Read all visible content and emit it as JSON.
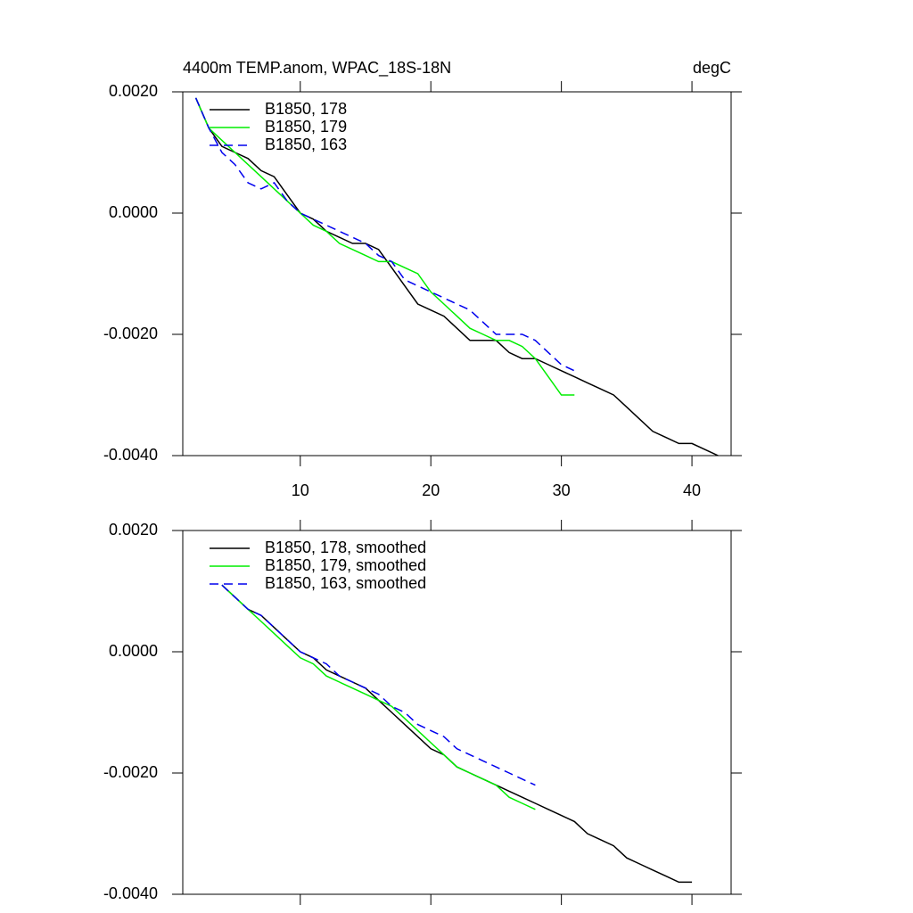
{
  "chart_data": [
    {
      "type": "line",
      "title": "4400m TEMP.anom, WPAC_18S-18N",
      "units": "degC",
      "xlim": [
        1,
        43
      ],
      "xticks": [
        10,
        20,
        30,
        40
      ],
      "show_xtick_labels": true,
      "ylim": [
        -0.004,
        0.002
      ],
      "yticks": [
        {
          "value": -0.004,
          "label": "-0.0040"
        },
        {
          "value": -0.002,
          "label": "-0.0020"
        },
        {
          "value": 0,
          "label": "0.0000"
        },
        {
          "value": 0.002,
          "label": "0.0020"
        }
      ],
      "legend": "upper left",
      "series": [
        {
          "name": "B1850, 178",
          "color": "#000000",
          "dash": false,
          "x": [
            2,
            3,
            4,
            5,
            6,
            7,
            8,
            9,
            10,
            11,
            12,
            13,
            14,
            15,
            16,
            17,
            18,
            19,
            20,
            21,
            22,
            23,
            24,
            25,
            26,
            27,
            28,
            29,
            30,
            31,
            32,
            33,
            34,
            35,
            36,
            37,
            38,
            39,
            40,
            41,
            42
          ],
          "values": [
            0.0019,
            0.0014,
            0.0011,
            0.001,
            0.0009,
            0.0007,
            0.0006,
            0.0003,
            0.0,
            -0.0001,
            -0.0003,
            -0.0004,
            -0.0005,
            -0.0005,
            -0.0006,
            -0.0009,
            -0.0012,
            -0.0015,
            -0.0016,
            -0.0017,
            -0.0019,
            -0.0021,
            -0.0021,
            -0.0021,
            -0.0023,
            -0.0024,
            -0.0024,
            -0.0025,
            -0.0026,
            -0.0027,
            -0.0028,
            -0.0029,
            -0.003,
            -0.0032,
            -0.0034,
            -0.0036,
            -0.0037,
            -0.0038,
            -0.0038,
            -0.0039,
            -0.004
          ]
        },
        {
          "name": "B1850, 179",
          "color": "#00ee00",
          "dash": false,
          "x": [
            2,
            3,
            4,
            5,
            6,
            7,
            8,
            9,
            10,
            11,
            12,
            13,
            14,
            15,
            16,
            17,
            18,
            19,
            20,
            21,
            22,
            23,
            24,
            25,
            26,
            27,
            28,
            29,
            30,
            31
          ],
          "values": [
            0.0019,
            0.0014,
            0.0012,
            0.001,
            0.0008,
            0.0006,
            0.0004,
            0.0002,
            0.0,
            -0.0002,
            -0.0003,
            -0.0005,
            -0.0006,
            -0.0007,
            -0.0008,
            -0.0008,
            -0.0009,
            -0.001,
            -0.0013,
            -0.0015,
            -0.0017,
            -0.0019,
            -0.002,
            -0.0021,
            -0.0021,
            -0.0022,
            -0.0024,
            -0.0027,
            -0.003,
            -0.003
          ]
        },
        {
          "name": "B1850, 163",
          "color": "#0000ee",
          "dash": true,
          "x": [
            2,
            3,
            4,
            5,
            6,
            7,
            8,
            9,
            10,
            11,
            12,
            13,
            14,
            15,
            16,
            17,
            18,
            19,
            20,
            21,
            22,
            23,
            24,
            25,
            26,
            27,
            28,
            29,
            30,
            31
          ],
          "values": [
            0.0019,
            0.0014,
            0.001,
            0.0008,
            0.0005,
            0.0004,
            0.0005,
            0.0002,
            0.0,
            -0.0001,
            -0.0002,
            -0.0003,
            -0.0004,
            -0.0005,
            -0.0007,
            -0.0008,
            -0.0011,
            -0.0012,
            -0.0013,
            -0.0014,
            -0.0015,
            -0.0016,
            -0.0018,
            -0.002,
            -0.002,
            -0.002,
            -0.0021,
            -0.0023,
            -0.0025,
            -0.0026
          ]
        }
      ]
    },
    {
      "type": "line",
      "xlim": [
        1,
        43
      ],
      "xticks": [
        10,
        20,
        30,
        40
      ],
      "show_xtick_labels": false,
      "ylim": [
        -0.004,
        0.002
      ],
      "yticks": [
        {
          "value": -0.004,
          "label": "-0.0040"
        },
        {
          "value": -0.002,
          "label": "-0.0020"
        },
        {
          "value": 0,
          "label": "0.0000"
        },
        {
          "value": 0.002,
          "label": "0.0020"
        }
      ],
      "legend": "upper left",
      "series": [
        {
          "name": "B1850, 178, smoothed",
          "color": "#000000",
          "dash": false,
          "x": [
            4,
            5,
            6,
            7,
            8,
            9,
            10,
            11,
            12,
            13,
            14,
            15,
            16,
            17,
            18,
            19,
            20,
            21,
            22,
            23,
            24,
            25,
            26,
            27,
            28,
            29,
            30,
            31,
            32,
            33,
            34,
            35,
            36,
            37,
            38,
            39,
            40
          ],
          "values": [
            0.0011,
            0.0009,
            0.0007,
            0.0006,
            0.0004,
            0.0002,
            0.0,
            -0.0001,
            -0.0003,
            -0.0004,
            -0.0005,
            -0.0006,
            -0.0008,
            -0.001,
            -0.0012,
            -0.0014,
            -0.0016,
            -0.0017,
            -0.0019,
            -0.002,
            -0.0021,
            -0.0022,
            -0.0023,
            -0.0024,
            -0.0025,
            -0.0026,
            -0.0027,
            -0.0028,
            -0.003,
            -0.0031,
            -0.0032,
            -0.0034,
            -0.0035,
            -0.0036,
            -0.0037,
            -0.0038,
            -0.0038
          ]
        },
        {
          "name": "B1850, 179, smoothed",
          "color": "#00ee00",
          "dash": false,
          "x": [
            4,
            5,
            6,
            7,
            8,
            9,
            10,
            11,
            12,
            13,
            14,
            15,
            16,
            17,
            18,
            19,
            20,
            21,
            22,
            23,
            24,
            25,
            26,
            27,
            28
          ],
          "values": [
            0.0011,
            0.0009,
            0.0007,
            0.0005,
            0.0003,
            0.0001,
            -0.0001,
            -0.0002,
            -0.0004,
            -0.0005,
            -0.0006,
            -0.0007,
            -0.0008,
            -0.0009,
            -0.0011,
            -0.0013,
            -0.0015,
            -0.0017,
            -0.0019,
            -0.002,
            -0.0021,
            -0.0022,
            -0.0024,
            -0.0025,
            -0.0026
          ]
        },
        {
          "name": "B1850, 163, smoothed",
          "color": "#0000ee",
          "dash": true,
          "x": [
            4,
            5,
            6,
            7,
            8,
            9,
            10,
            11,
            12,
            13,
            14,
            15,
            16,
            17,
            18,
            19,
            20,
            21,
            22,
            23,
            24,
            25,
            26,
            27,
            28
          ],
          "values": [
            0.0011,
            0.0009,
            0.0007,
            0.0006,
            0.0004,
            0.0002,
            0.0,
            -0.0001,
            -0.0002,
            -0.0004,
            -0.0005,
            -0.0006,
            -0.0007,
            -0.0009,
            -0.001,
            -0.0012,
            -0.0013,
            -0.0014,
            -0.0016,
            -0.0017,
            -0.0018,
            -0.0019,
            -0.002,
            -0.0021,
            -0.0022
          ]
        }
      ]
    }
  ]
}
